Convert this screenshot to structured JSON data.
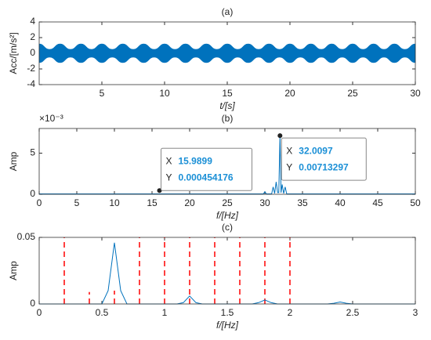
{
  "chart_data": [
    {
      "type": "area",
      "title": "(a)",
      "xlabel": "t/[s]",
      "ylabel": "Acc/[m/s²]",
      "color": "#0072BD",
      "xlim": [
        0,
        30
      ],
      "xticks": [
        5,
        10,
        15,
        20,
        25,
        30
      ],
      "ylim": [
        -4,
        4
      ],
      "yticks": [
        -4,
        -2,
        0,
        2,
        4
      ],
      "x": [
        0,
        0.83,
        1.67,
        2.5,
        3.33,
        4.17,
        5,
        5.83,
        6.67,
        7.5,
        8.33,
        9.17,
        10,
        10.83,
        11.67,
        12.5,
        13.33,
        14.17,
        15,
        15.83,
        16.67,
        17.5,
        18.33,
        19.17,
        20,
        20.83,
        21.67,
        22.5,
        23.33,
        24.17,
        25,
        25.83,
        26.67,
        27.5,
        28.33,
        29.17,
        30
      ],
      "upper": [
        1.2,
        0.5,
        1.2,
        0.5,
        1.2,
        0.5,
        1.2,
        0.5,
        1.2,
        0.5,
        1.2,
        0.5,
        1.2,
        0.5,
        1.2,
        0.5,
        1.2,
        0.5,
        1.2,
        0.5,
        1.2,
        0.5,
        1.2,
        0.5,
        1.2,
        0.5,
        1.2,
        0.5,
        1.2,
        0.5,
        1.2,
        0.5,
        1.2,
        0.5,
        1.2,
        0.5,
        1.2
      ],
      "lower": [
        -1.2,
        -0.5,
        -1.2,
        -0.5,
        -1.2,
        -0.5,
        -1.2,
        -0.5,
        -1.2,
        -0.5,
        -1.2,
        -0.5,
        -1.2,
        -0.5,
        -1.2,
        -0.5,
        -1.2,
        -0.5,
        -1.2,
        -0.5,
        -1.2,
        -0.5,
        -1.2,
        -0.5,
        -1.2,
        -0.5,
        -1.2,
        -0.5,
        -1.2,
        -0.5,
        -1.2,
        -0.5,
        -1.2,
        -0.5,
        -1.2,
        -0.5,
        -1.2
      ]
    },
    {
      "type": "line",
      "title": "(b)",
      "xlabel": "f/[Hz]",
      "ylabel": "Amp",
      "y_exponent_label": "×10⁻³",
      "color": "#0072BD",
      "xlim": [
        0,
        50
      ],
      "xticks": [
        0,
        5,
        10,
        15,
        20,
        25,
        30,
        35,
        40,
        45,
        50
      ],
      "ylim": [
        0,
        0.008
      ],
      "yticks": [
        0,
        {
          "value": 0.005,
          "label": "5"
        }
      ],
      "x": [
        0,
        29.8,
        30.0,
        30.2,
        30.9,
        31.1,
        31.3,
        31.5,
        31.7,
        31.85,
        32.0097,
        32.15,
        32.3,
        32.5,
        32.7,
        32.9,
        50
      ],
      "values": [
        5e-05,
        5e-05,
        0.0003,
        5e-05,
        5e-05,
        0.0009,
        0.0001,
        0.0015,
        0.0002,
        0.0002,
        0.00713297,
        0.0002,
        0.0012,
        0.0001,
        0.0009,
        5e-05,
        5e-05
      ],
      "datatips": [
        {
          "x_name": "X",
          "x": 15.9899,
          "y_name": "Y",
          "y": 0.000454176
        },
        {
          "x_name": "X",
          "x": 32.0097,
          "y_name": "Y",
          "y": 0.00713297
        }
      ]
    },
    {
      "type": "line",
      "title": "(c)",
      "xlabel": "f/[Hz]",
      "ylabel": "Amp",
      "color": "#0072BD",
      "xlim": [
        0,
        3
      ],
      "xticks": [
        0,
        0.5,
        1,
        1.5,
        2,
        2.5,
        3
      ],
      "ylim": [
        0,
        0.05
      ],
      "yticks": [
        0,
        0.05
      ],
      "x": [
        0,
        0.5,
        0.55,
        0.6,
        0.65,
        0.7,
        1.1,
        1.15,
        1.2,
        1.25,
        1.3,
        1.7,
        1.75,
        1.8,
        1.85,
        1.9,
        2.3,
        2.35,
        2.4,
        2.45,
        2.5,
        3
      ],
      "values": [
        0,
        0,
        0.01,
        0.046,
        0.01,
        0,
        0,
        0.001,
        0.006,
        0.001,
        0,
        0,
        0.001,
        0.003,
        0.001,
        0,
        0,
        0.0005,
        0.0015,
        0.0005,
        0,
        0
      ],
      "markers": {
        "color": "#FF0000",
        "x": [
          0.2,
          0.4,
          0.6,
          0.8,
          1.0,
          1.2,
          1.4,
          1.6,
          1.8,
          2.0
        ],
        "values": [
          0.05,
          0.009,
          0.01,
          0.05,
          0.05,
          0.05,
          0.05,
          0.05,
          0.05,
          0.05
        ]
      }
    }
  ]
}
